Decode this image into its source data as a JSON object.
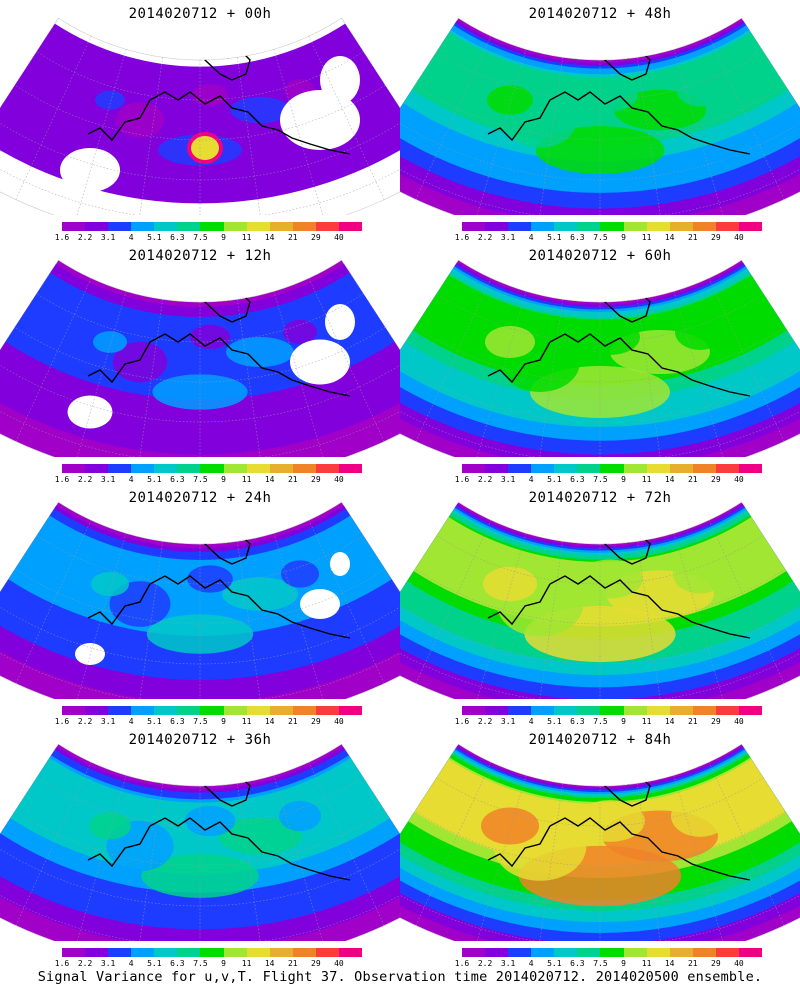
{
  "panels": [
    {
      "title": "2014020712 + 00h",
      "level": 0
    },
    {
      "title": "2014020712 + 48h",
      "level": 4
    },
    {
      "title": "2014020712 + 12h",
      "level": 1
    },
    {
      "title": "2014020712 + 60h",
      "level": 5
    },
    {
      "title": "2014020712 + 24h",
      "level": 2
    },
    {
      "title": "2014020712 + 72h",
      "level": 6
    },
    {
      "title": "2014020712 + 36h",
      "level": 3
    },
    {
      "title": "2014020712 + 84h",
      "level": 7
    }
  ],
  "colorbar": {
    "labels": [
      "1.6",
      "2.2",
      "3.1",
      "4",
      "5.1",
      "6.3",
      "7.5",
      "9",
      "11",
      "14",
      "21",
      "29",
      "40"
    ],
    "colors": [
      "#a000c8",
      "#8200dc",
      "#1e3cff",
      "#00a0ff",
      "#00c8c8",
      "#00d28c",
      "#00dc00",
      "#a0e632",
      "#e6dc32",
      "#e6af2d",
      "#f08228",
      "#fa3c3c",
      "#f00082"
    ]
  },
  "caption": "Signal Variance for u,v,T. Flight 37. Observation time 2014020712. 2014020500 ensemble."
}
